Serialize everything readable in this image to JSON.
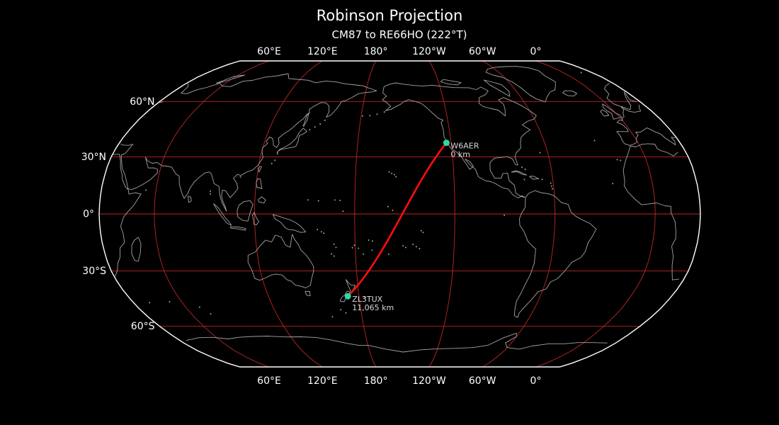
{
  "title": "Robinson Projection",
  "subtitle": "CM87 to RE66HO (222°T)",
  "projection": {
    "name": "Robinson",
    "central_longitude_deg": -153
  },
  "axes": {
    "top_ticks": [
      {
        "lon_deg": 60,
        "label": "60°E"
      },
      {
        "lon_deg": 120,
        "label": "120°E"
      },
      {
        "lon_deg": 180,
        "label": "180°"
      },
      {
        "lon_deg": -120,
        "label": "120°W"
      },
      {
        "lon_deg": -60,
        "label": "60°W"
      },
      {
        "lon_deg": 0,
        "label": "0°"
      }
    ],
    "bottom_ticks": [
      {
        "lon_deg": 60,
        "label": "60°E"
      },
      {
        "lon_deg": 120,
        "label": "120°E"
      },
      {
        "lon_deg": 180,
        "label": "180°"
      },
      {
        "lon_deg": -120,
        "label": "120°W"
      },
      {
        "lon_deg": -60,
        "label": "60°W"
      },
      {
        "lon_deg": 0,
        "label": "0°"
      }
    ],
    "left_ticks": [
      {
        "lat_deg": 60,
        "label": "60°N"
      },
      {
        "lat_deg": 30,
        "label": "30°N"
      },
      {
        "lat_deg": 0,
        "label": "0°"
      },
      {
        "lat_deg": -30,
        "label": "30°S"
      },
      {
        "lat_deg": -60,
        "label": "60°S"
      }
    ],
    "lat_gridlines_deg": [
      60,
      30,
      0,
      -30,
      -60
    ],
    "lon_gridlines_deg": [
      60,
      120,
      180,
      -120,
      -60,
      0
    ]
  },
  "stations": [
    {
      "callsign": "W6AER",
      "grid": "CM87",
      "lat_deg": 37.5,
      "lon_deg": -123.0,
      "distance_label": "0 km"
    },
    {
      "callsign": "ZL3TUX",
      "grid": "RE66HO",
      "lat_deg": -43.44,
      "lon_deg": 172.63,
      "distance_label": "11,065 km"
    }
  ],
  "great_circle": {
    "from_grid": "CM87",
    "to_grid": "RE66HO",
    "bearing_label": "222°T"
  },
  "colors": {
    "background": "#000000",
    "graticule": "#bf2626",
    "coastline": "#a3a3a3",
    "map_outline": "#ffffff",
    "great_circle": "#ff0e0e",
    "station_marker": "#2ed9a3",
    "station_label_text": "#d9d9d9",
    "tick_label_text": "#ffffff"
  }
}
